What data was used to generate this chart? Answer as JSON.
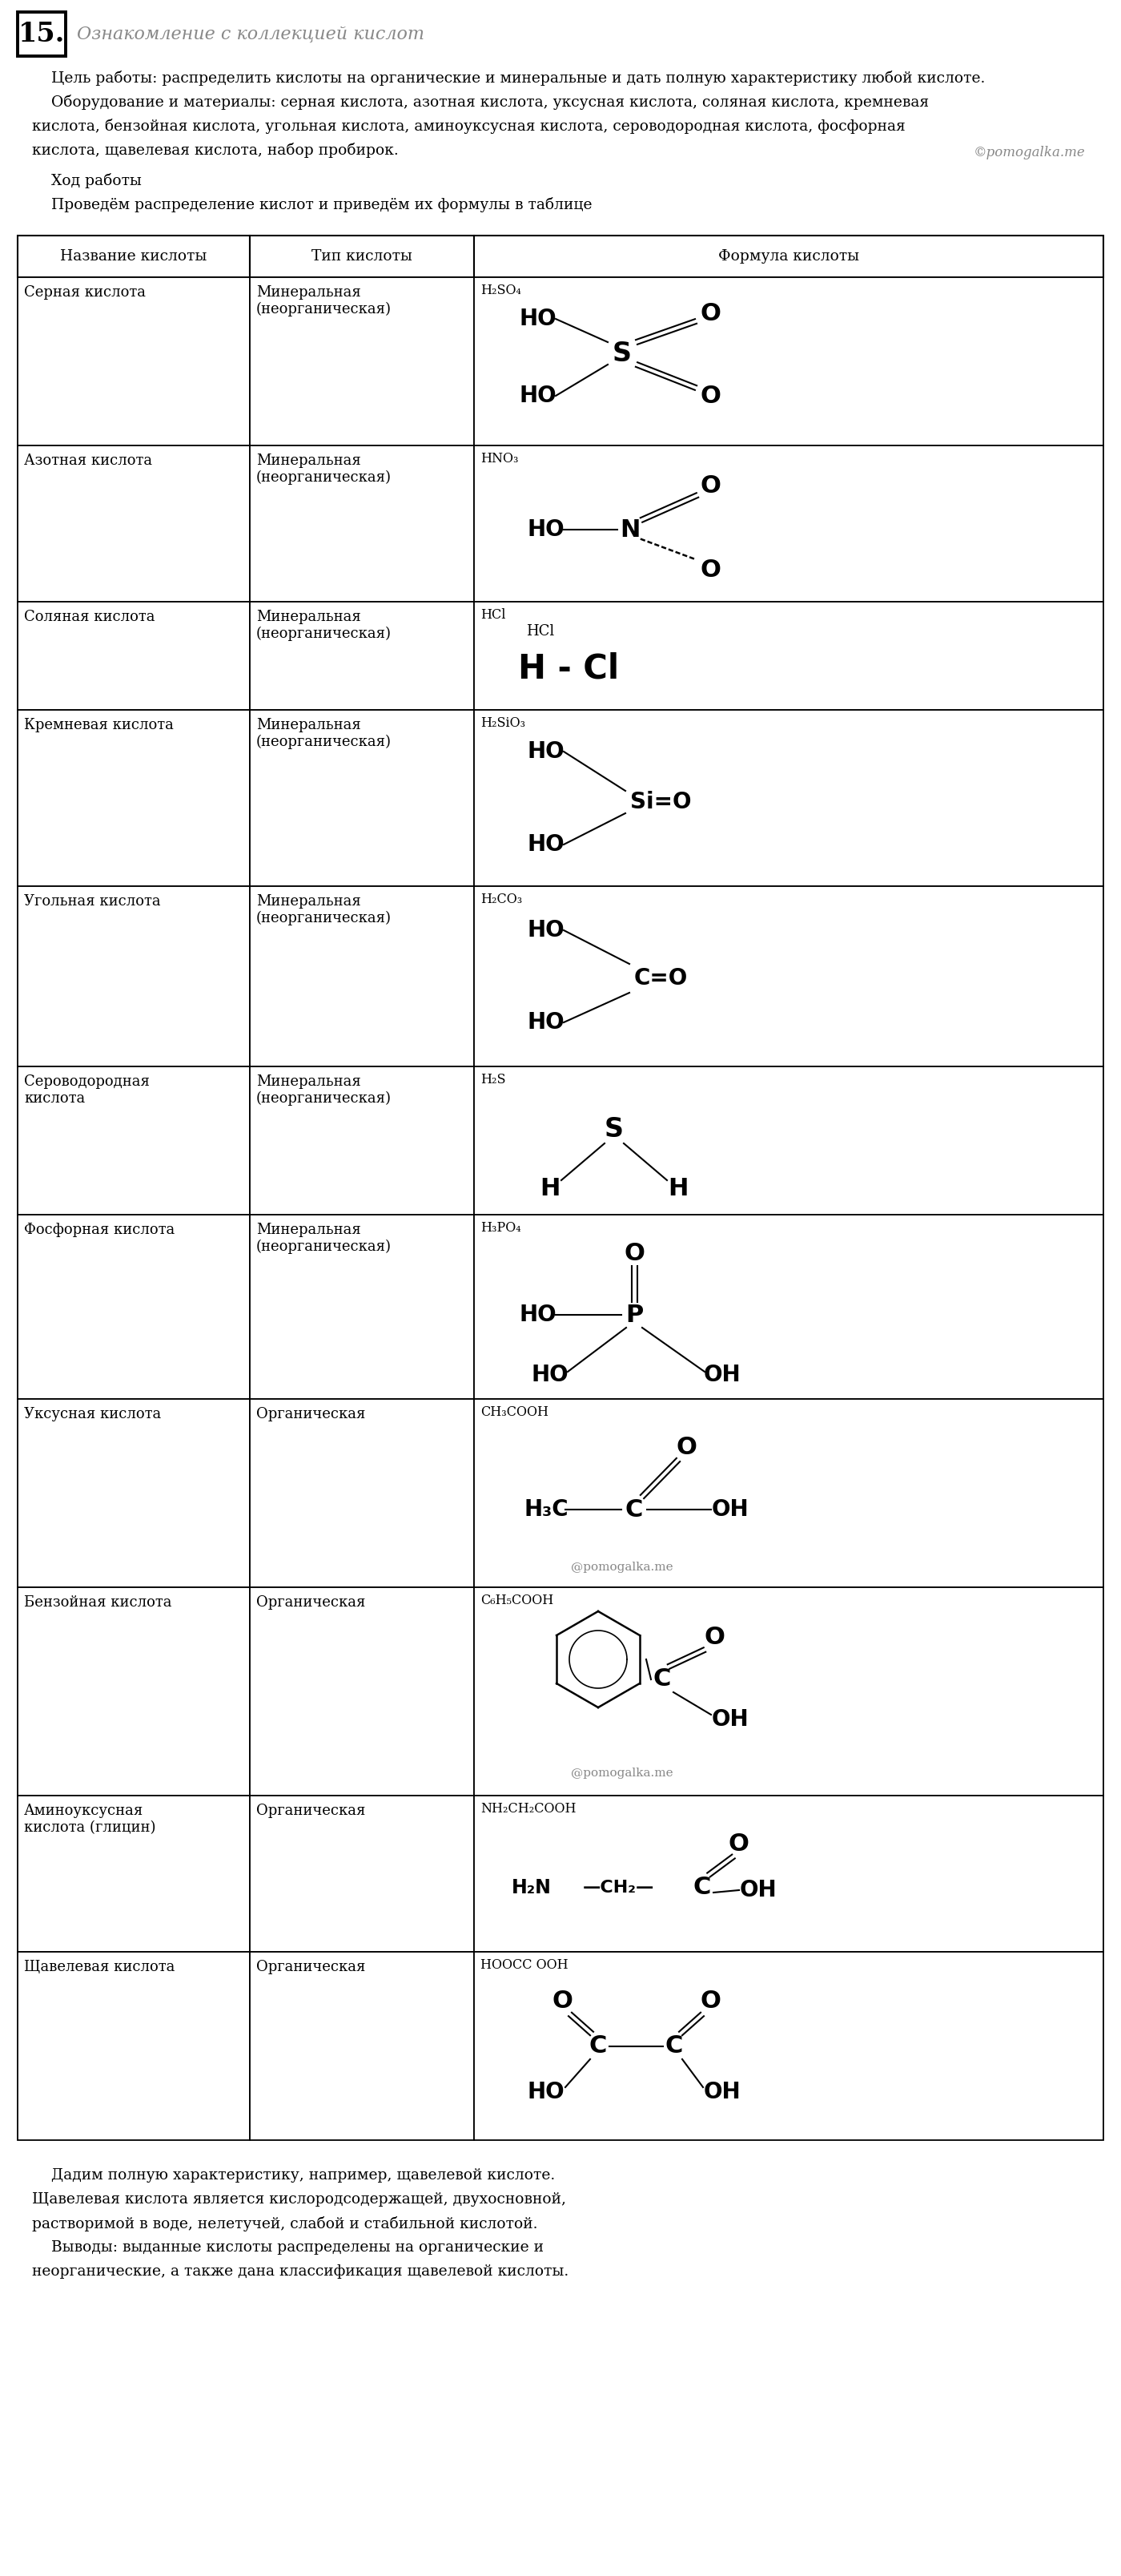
{
  "title_number": "15.",
  "title_text": "Ознакомление с коллекцией кислот",
  "intro_line1": "    Цель работы: распределить кислоты на органические и минеральные и дать полную характеристику любой кислоте.",
  "intro_line2": "    Оборудование и материалы: серная кислота, азотная кислота, уксусная кислота, соляная кислота, кремневая",
  "intro_line3": "кислота, бензойная кислота, угольная кислота, аминоуксусная кислота, сероводородная кислота, фосфорная",
  "intro_line4": "кислота, щавелевая кислота, набор пробирок.",
  "watermark": "©pomogalka.me",
  "section1": "    Ход работы",
  "section2": "    Проведём распределение кислот и приведём их формулы в таблице",
  "col_headers": [
    "Название кислоты",
    "Тип кислоты",
    "Формула кислоты"
  ],
  "rows": [
    {
      "name": "Серная кислота",
      "type": "Минеральная\n(неорганическая)",
      "formula": "H₂SO₄",
      "rh": 210
    },
    {
      "name": "Азотная кислота",
      "type": "Минеральная\n(неорганическая)",
      "formula": "HNO₃",
      "rh": 195
    },
    {
      "name": "Соляная кислота",
      "type": "Минеральная\n(неорганическая)",
      "formula": "HCl",
      "rh": 135
    },
    {
      "name": "Кремневая кислота",
      "type": "Минеральная\n(неорганическая)",
      "formula": "H₂SiO₃",
      "rh": 220
    },
    {
      "name": "Угольная кислота",
      "type": "Минеральная\n(неорганическая)",
      "formula": "H₂CO₃",
      "rh": 225
    },
    {
      "name": "Сероводородная\nкислота",
      "type": "Минеральная\n(неорганическая)",
      "formula": "H₂S",
      "rh": 185
    },
    {
      "name": "Фосфорная кислота",
      "type": "Минеральная\n(неорганическая)",
      "formula": "H₃PO₄",
      "rh": 230
    },
    {
      "name": "Уксусная кислота",
      "type": "Органическая",
      "formula": "CH₃COOH",
      "rh": 235
    },
    {
      "name": "Бензойная кислота",
      "type": "Органическая",
      "formula": "C₆H₅COOH",
      "rh": 260
    },
    {
      "name": "Аминоуксусная\nкислота (глицин)",
      "type": "Органическая",
      "formula": "NH₂CH₂COOH",
      "rh": 195
    },
    {
      "name": "Щавелевая кислота",
      "type": "Органическая",
      "formula": "HOOCC OOH",
      "rh": 235
    }
  ],
  "conc_lines": [
    "    Дадим полную характеристику, например, щавелевой кислоте.",
    "Щавелевая кислота является кислородсодержащей, двухосновной,",
    "растворимой в воде, нелетучей, слабой и стабильной кислотой.",
    "    Выводы: выданные кислоты распределены на органические и",
    "неорганические, а также дана классификация щавелевой кислоты."
  ],
  "bg": "#ffffff",
  "fg": "#000000",
  "gray": "#888888"
}
